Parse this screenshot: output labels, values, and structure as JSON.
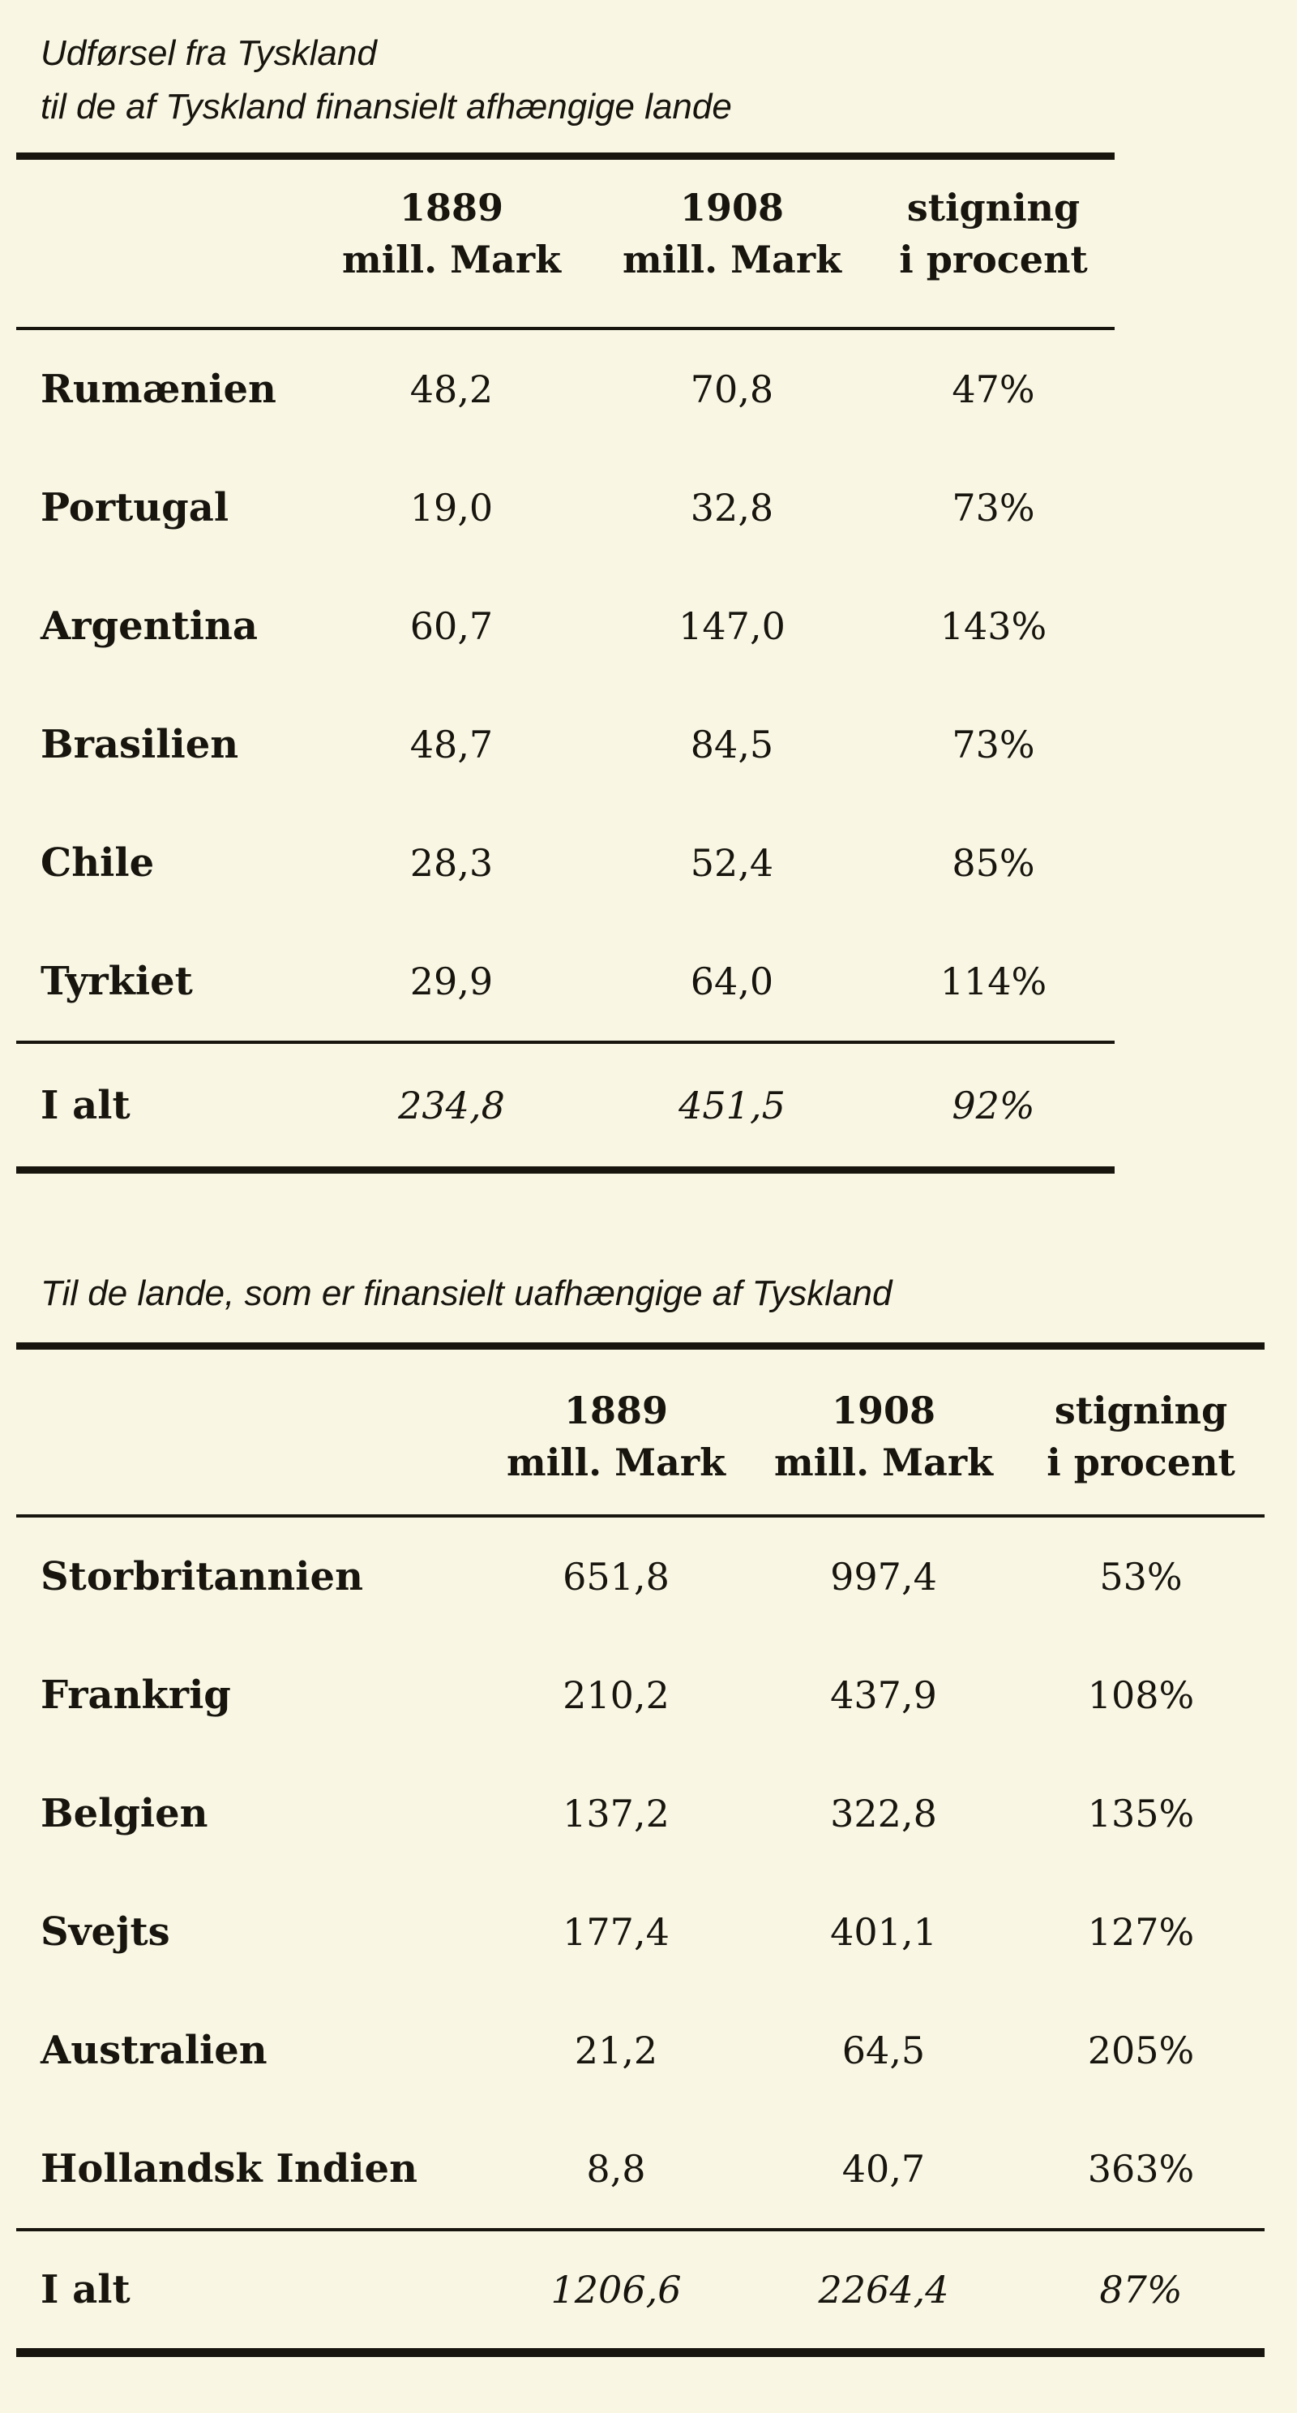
{
  "colors": {
    "background": "#f9f7e4",
    "ink": "#17150e"
  },
  "section1": {
    "title_line1": "Udførsel fra Tyskland",
    "title_line2": "til de af Tyskland finansielt afhængige lande",
    "headers": [
      {
        "line1": "1889",
        "line2": "mill. Mark"
      },
      {
        "line1": "1908",
        "line2": "mill. Mark"
      },
      {
        "line1": "stigning",
        "line2": "i procent"
      }
    ],
    "rows": [
      {
        "label": "Rumænien",
        "v1889": "48,2",
        "v1908": "70,8",
        "stigning": "47%"
      },
      {
        "label": "Portugal",
        "v1889": "19,0",
        "v1908": "32,8",
        "stigning": "73%"
      },
      {
        "label": "Argentina",
        "v1889": "60,7",
        "v1908": "147,0",
        "stigning": "143%"
      },
      {
        "label": "Brasilien",
        "v1889": "48,7",
        "v1908": "84,5",
        "stigning": "73%"
      },
      {
        "label": "Chile",
        "v1889": "28,3",
        "v1908": "52,4",
        "stigning": "85%"
      },
      {
        "label": "Tyrkiet",
        "v1889": "29,9",
        "v1908": "64,0",
        "stigning": "114%"
      }
    ],
    "total": {
      "label": "I alt",
      "v1889": "234,8",
      "v1908": "451,5",
      "stigning": "92%"
    }
  },
  "section2": {
    "title_line1": "Til de lande, som er finansielt uafhængige af Tyskland",
    "headers": [
      {
        "line1": "1889",
        "line2": "mill. Mark"
      },
      {
        "line1": "1908",
        "line2": "mill. Mark"
      },
      {
        "line1": "stigning",
        "line2": "i procent"
      }
    ],
    "rows": [
      {
        "label": "Storbritannien",
        "v1889": "651,8",
        "v1908": "997,4",
        "stigning": "53%"
      },
      {
        "label": "Frankrig",
        "v1889": "210,2",
        "v1908": "437,9",
        "stigning": "108%"
      },
      {
        "label": "Belgien",
        "v1889": "137,2",
        "v1908": "322,8",
        "stigning": "135%"
      },
      {
        "label": "Svejts",
        "v1889": "177,4",
        "v1908": "401,1",
        "stigning": "127%"
      },
      {
        "label": "Australien",
        "v1889": "21,2",
        "v1908": "64,5",
        "stigning": "205%"
      },
      {
        "label": "Hollandsk Indien",
        "v1889": "8,8",
        "v1908": "40,7",
        "stigning": "363%"
      }
    ],
    "total": {
      "label": "I alt",
      "v1889": "1206,6",
      "v1908": "2264,4",
      "stigning": "87%"
    }
  }
}
